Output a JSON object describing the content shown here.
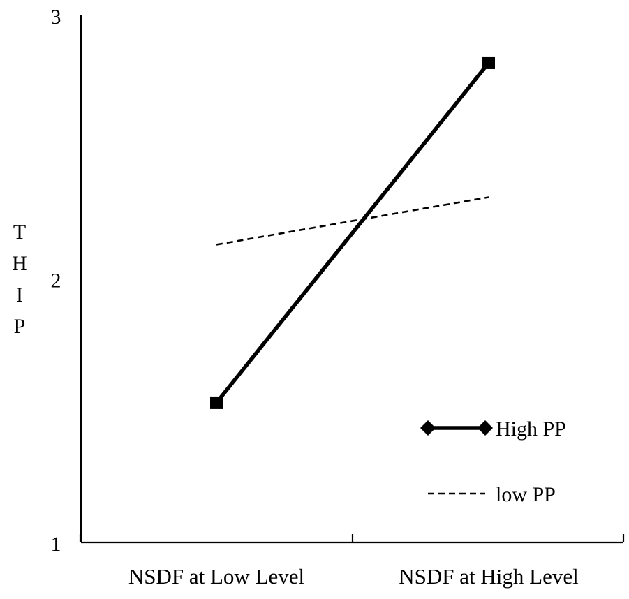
{
  "chart_data": {
    "type": "line",
    "title": "",
    "xlabel": "",
    "ylabel": "THIP",
    "categories": [
      "NSDF at Low Level",
      "NSDF at High Level"
    ],
    "ylim": [
      1,
      3
    ],
    "yticks": [
      "1",
      "2",
      "3"
    ],
    "grid": false,
    "legend_position": "bottom-right",
    "series": [
      {
        "name": "High PP",
        "values": [
          1.53,
          2.82
        ],
        "line_style": "solid",
        "marker": "square",
        "legend_marker": "diamond",
        "color": "#000000"
      },
      {
        "name": "low PP",
        "values": [
          2.13,
          2.31
        ],
        "line_style": "dashed",
        "marker": "none",
        "color": "#000000"
      }
    ]
  }
}
